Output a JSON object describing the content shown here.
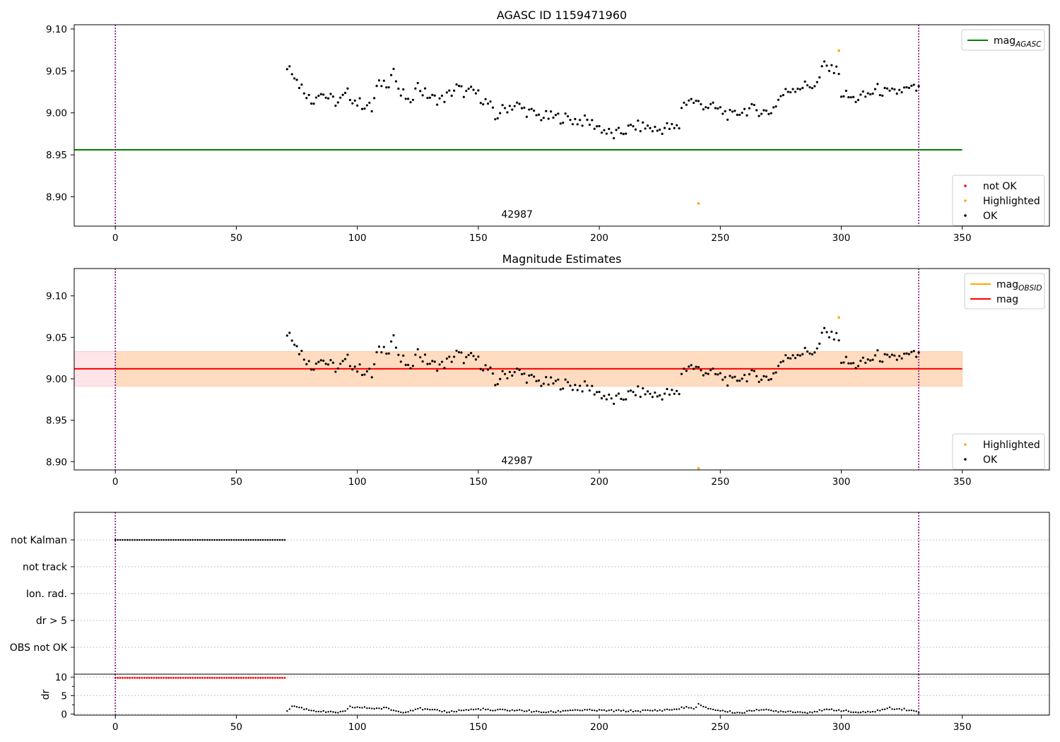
{
  "figure": {
    "panel1_title": "AGASC ID 1159471960",
    "panel2_title": "Magnitude Estimates",
    "obsid_label": "42987"
  },
  "colors": {
    "ok": "#000000",
    "highlighted": "#ffa500",
    "not_ok": "#ff0000",
    "mag_agasc_line": "#008000",
    "mag_obsid_line": "#ffa500",
    "mag_line": "#ff0000",
    "mag_band_obsid": "#ffdab9",
    "mag_band": "#ffe4e8",
    "obs_boundary": "#800080",
    "grid": "#b0b0b0"
  },
  "chart_data": [
    {
      "type": "scatter",
      "title": "AGASC ID 1159471960",
      "xlim": [
        -17,
        386
      ],
      "ylim": [
        8.865,
        9.105
      ],
      "x_ticks": [
        0,
        50,
        100,
        150,
        200,
        250,
        300,
        350
      ],
      "y_ticks": [
        8.9,
        8.95,
        9.0,
        9.05,
        9.1
      ],
      "y_tick_labels": [
        "8.90",
        "8.95",
        "9.00",
        "9.05",
        "9.10"
      ],
      "legend_upper": {
        "placement": "upper right",
        "entries": [
          {
            "label": "mag",
            "subscript": "AGASC",
            "color": "#008000"
          }
        ]
      },
      "legend_lower": {
        "placement": "lower right",
        "entries": [
          {
            "label": "not OK",
            "color": "#ff0000"
          },
          {
            "label": "Highlighted",
            "color": "#ffa500"
          },
          {
            "label": "OK",
            "color": "#000000"
          }
        ]
      },
      "hlines": [
        {
          "name": "mag_AGASC",
          "y": 8.956,
          "x_range": [
            -17,
            350
          ]
        }
      ],
      "vlines": [
        0,
        332
      ],
      "annotations": [
        {
          "text": "42987",
          "x": 166,
          "y": 8.875
        }
      ],
      "highlighted_points": [
        [
          299,
          9.074
        ],
        [
          241,
          8.892
        ]
      ]
    },
    {
      "type": "scatter",
      "title": "Magnitude Estimates",
      "xlim": [
        -17,
        386
      ],
      "ylim": [
        8.89,
        9.133
      ],
      "x_ticks": [
        0,
        50,
        100,
        150,
        200,
        250,
        300,
        350
      ],
      "y_ticks": [
        8.9,
        8.95,
        9.0,
        9.05,
        9.1
      ],
      "y_tick_labels": [
        "8.90",
        "8.95",
        "9.00",
        "9.05",
        "9.10"
      ],
      "legend_upper": {
        "placement": "upper right",
        "entries": [
          {
            "label": "mag",
            "subscript": "OBSID",
            "color": "#ffa500"
          },
          {
            "label": "mag",
            "subscript": "",
            "color": "#ff0000"
          }
        ]
      },
      "legend_lower": {
        "placement": "lower right",
        "entries": [
          {
            "label": "Highlighted",
            "color": "#ffa500"
          },
          {
            "label": "OK",
            "color": "#000000"
          }
        ]
      },
      "hlines": [
        {
          "name": "mag",
          "y": 9.012,
          "x_range": [
            -17,
            350
          ]
        }
      ],
      "bands": [
        {
          "name": "mag_band",
          "y_range": [
            8.991,
            9.033
          ],
          "x_range": [
            -17,
            350
          ]
        },
        {
          "name": "mag_obsid_band",
          "y_range": [
            8.991,
            9.033
          ],
          "x_range": [
            0,
            350
          ]
        }
      ],
      "vlines": [
        0,
        332
      ],
      "annotations": [
        {
          "text": "42987",
          "x": 166,
          "y": 8.9
        }
      ],
      "highlighted_points": [
        [
          299,
          9.074
        ],
        [
          241,
          8.892
        ]
      ]
    },
    {
      "type": "scatter",
      "xlim": [
        -17,
        386
      ],
      "categories": [
        "not Kalman",
        "not track",
        "Ion. rad.",
        "dr > 5",
        "OBS not OK"
      ],
      "flag_ranges": [
        {
          "category": "not Kalman",
          "x_range": [
            0,
            70
          ],
          "step": 1
        }
      ],
      "vlines": [
        0,
        332
      ]
    },
    {
      "type": "scatter",
      "xlim": [
        -17,
        386
      ],
      "ylim": [
        -0.3,
        10.8
      ],
      "ylabel": "dr",
      "x_ticks": [
        0,
        50,
        100,
        150,
        200,
        250,
        300,
        350
      ],
      "y_ticks": [
        0,
        5,
        10
      ],
      "hline_dotted": 10,
      "red_points": {
        "x_range": [
          0,
          70
        ],
        "y": 9.8
      },
      "dr_anchors": [
        [
          71,
          0.6
        ],
        [
          73,
          2.2
        ],
        [
          76,
          1.8
        ],
        [
          80,
          1.1
        ],
        [
          85,
          0.7
        ],
        [
          90,
          0.4
        ],
        [
          95,
          0.6
        ],
        [
          97,
          1.9
        ],
        [
          103,
          1.7
        ],
        [
          108,
          1.5
        ],
        [
          112,
          1.6
        ],
        [
          115,
          1.0
        ],
        [
          118,
          0.5
        ],
        [
          120,
          0.7
        ],
        [
          123,
          1.1
        ],
        [
          125,
          1.6
        ],
        [
          128,
          1.2
        ],
        [
          133,
          0.9
        ],
        [
          138,
          0.6
        ],
        [
          143,
          1.0
        ],
        [
          148,
          1.2
        ],
        [
          152,
          1.4
        ],
        [
          155,
          0.9
        ],
        [
          160,
          1.1
        ],
        [
          170,
          0.9
        ],
        [
          175,
          0.5
        ],
        [
          182,
          0.6
        ],
        [
          188,
          1.1
        ],
        [
          195,
          1.0
        ],
        [
          205,
          0.9
        ],
        [
          215,
          0.8
        ],
        [
          225,
          1.0
        ],
        [
          232,
          1.3
        ],
        [
          235,
          1.8
        ],
        [
          238,
          1.6
        ],
        [
          240,
          1.7
        ],
        [
          241,
          2.7
        ],
        [
          243,
          1.8
        ],
        [
          250,
          0.9
        ],
        [
          258,
          0.3
        ],
        [
          262,
          0.7
        ],
        [
          265,
          1.3
        ],
        [
          272,
          0.8
        ],
        [
          280,
          0.7
        ],
        [
          285,
          0.4
        ],
        [
          290,
          0.8
        ],
        [
          296,
          1.2
        ],
        [
          300,
          1.0
        ],
        [
          305,
          0.5
        ],
        [
          310,
          0.4
        ],
        [
          315,
          0.9
        ],
        [
          320,
          1.6
        ],
        [
          326,
          1.3
        ],
        [
          332,
          0.5
        ]
      ]
    }
  ],
  "series_anchors": {
    "x_range": [
      71,
      332
    ],
    "mag_curve": [
      [
        71,
        9.052
      ],
      [
        72,
        9.06
      ],
      [
        75,
        9.038
      ],
      [
        79,
        9.024
      ],
      [
        81,
        9.012
      ],
      [
        84,
        9.026
      ],
      [
        88,
        9.018
      ],
      [
        92,
        9.012
      ],
      [
        96,
        9.023
      ],
      [
        100,
        9.012
      ],
      [
        104,
        9.009
      ],
      [
        106,
        9.004
      ],
      [
        108,
        9.029
      ],
      [
        110,
        9.036
      ],
      [
        113,
        9.037
      ],
      [
        115,
        9.053
      ],
      [
        117,
        9.023
      ],
      [
        120,
        9.02
      ],
      [
        122,
        9.006
      ],
      [
        124,
        9.036
      ],
      [
        127,
        9.025
      ],
      [
        131,
        9.017
      ],
      [
        135,
        9.016
      ],
      [
        138,
        9.022
      ],
      [
        141,
        9.03
      ],
      [
        145,
        9.023
      ],
      [
        148,
        9.026
      ],
      [
        152,
        9.016
      ],
      [
        155,
        9.008
      ],
      [
        157,
        8.992
      ],
      [
        159,
        9.002
      ],
      [
        163,
        9.008
      ],
      [
        166,
        9.009
      ],
      [
        170,
        9.002
      ],
      [
        175,
        8.996
      ],
      [
        180,
        8.995
      ],
      [
        185,
        8.994
      ],
      [
        190,
        8.991
      ],
      [
        195,
        8.99
      ],
      [
        200,
        8.983
      ],
      [
        203,
        8.977
      ],
      [
        206,
        8.973
      ],
      [
        210,
        8.978
      ],
      [
        215,
        8.984
      ],
      [
        220,
        8.983
      ],
      [
        224,
        8.979
      ],
      [
        228,
        8.983
      ],
      [
        231,
        8.981
      ],
      [
        233,
        8.983
      ],
      [
        234,
        9.008
      ],
      [
        237,
        9.016
      ],
      [
        240,
        9.012
      ],
      [
        245,
        9.008
      ],
      [
        250,
        9.003
      ],
      [
        255,
        8.995
      ],
      [
        258,
        9.002
      ],
      [
        262,
        9.004
      ],
      [
        266,
        9.003
      ],
      [
        270,
        9.0
      ],
      [
        272,
        9.006
      ],
      [
        275,
        9.02
      ],
      [
        280,
        9.03
      ],
      [
        285,
        9.032
      ],
      [
        290,
        9.034
      ],
      [
        293,
        9.058
      ],
      [
        296,
        9.05
      ],
      [
        298,
        9.058
      ],
      [
        300,
        9.024
      ],
      [
        305,
        9.016
      ],
      [
        310,
        9.02
      ],
      [
        315,
        9.028
      ],
      [
        320,
        9.022
      ],
      [
        325,
        9.027
      ],
      [
        330,
        9.028
      ],
      [
        332,
        9.028
      ]
    ]
  }
}
